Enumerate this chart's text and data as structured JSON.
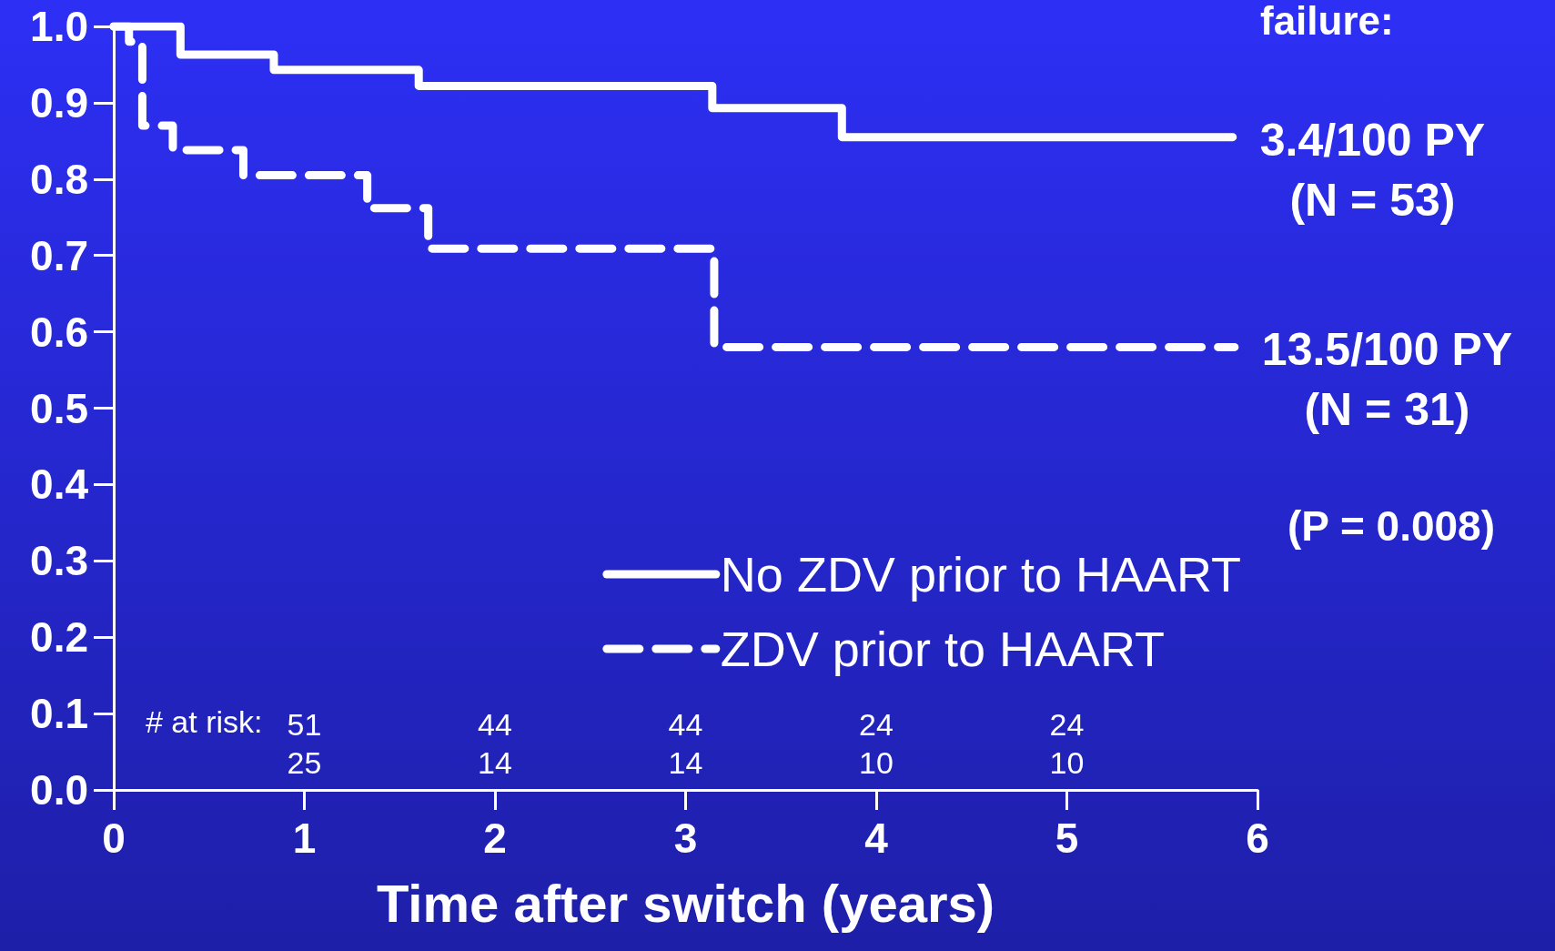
{
  "chart_data": {
    "type": "step",
    "xlabel": "Time after switch (years)",
    "series": [
      {
        "name": "No ZDV prior to HAART",
        "color": "#ffffff",
        "line_style": "solid",
        "x": [
          0,
          0.35,
          0.84,
          1.6,
          3.14,
          3.82,
          5.87
        ],
        "values": [
          1,
          0.963,
          0.943,
          0.922,
          0.893,
          0.855,
          0.855
        ]
      },
      {
        "name": "ZDV prior to HAART",
        "color": "#ffffff",
        "line_style": "dashed",
        "x": [
          0,
          0.08,
          0.15,
          0.31,
          0.68,
          1.33,
          1.65,
          3.15,
          5.88
        ],
        "values": [
          1,
          0.98,
          0.87,
          0.838,
          0.805,
          0.762,
          0.709,
          0.58,
          0.58
        ]
      }
    ],
    "xlim": [
      0,
      6
    ],
    "xticks": [
      0,
      1,
      2,
      3,
      4,
      5,
      6
    ],
    "ylim": [
      0,
      1
    ],
    "yticks": [
      {
        "value": 0,
        "label": "0.0"
      },
      {
        "value": 0.1,
        "label": "0.1"
      },
      {
        "value": 0.2,
        "label": "0.2"
      },
      {
        "value": 0.3,
        "label": "0.3"
      },
      {
        "value": 0.4,
        "label": "0.4"
      },
      {
        "value": 0.5,
        "label": "0.5"
      },
      {
        "value": 0.6,
        "label": "0.6"
      },
      {
        "value": 0.7,
        "label": "0.7"
      },
      {
        "value": 0.8,
        "label": "0.8"
      },
      {
        "value": 0.9,
        "label": "0.9"
      },
      {
        "value": 1,
        "label": "1.0"
      }
    ],
    "grid": false,
    "legend": "bottom right",
    "marker": "none",
    "annotations": [
      "failure:",
      {
        "text": "3.4/100 PY\n(N = 53)",
        "x": 5.87,
        "y": 0.855
      },
      {
        "text": "13.5/100 PY\n(N = 31)",
        "x": 5.88,
        "y": 0.58
      },
      "(P = 0.008)",
      "# at risk:",
      "51",
      "44",
      "44",
      "24",
      "24",
      "25",
      "14",
      "14",
      "10",
      "10"
    ]
  }
}
